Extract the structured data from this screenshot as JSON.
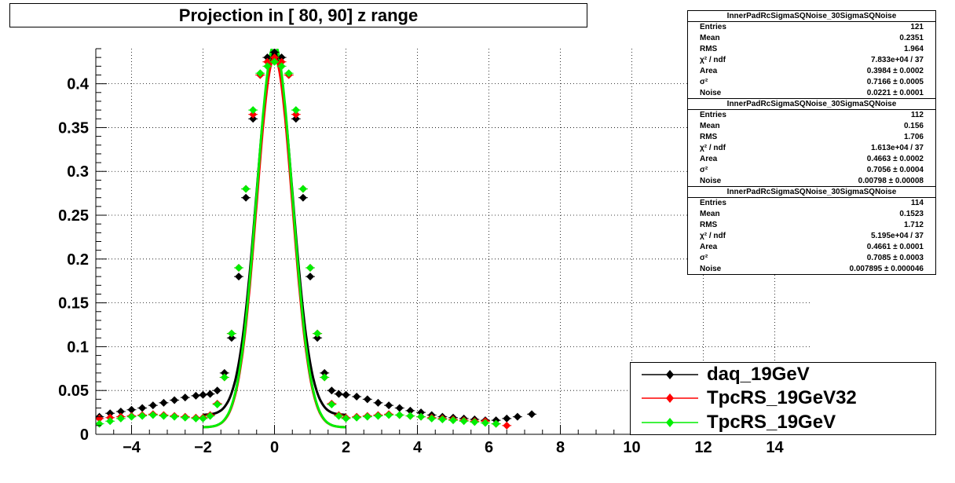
{
  "chart_data": {
    "type": "scatter",
    "title": "Projection in [  80,  90] z range",
    "xlabel": "",
    "ylabel": "",
    "xlim": [
      -5,
      15
    ],
    "ylim": [
      0,
      0.44
    ],
    "x_ticks": [
      "−4",
      "−2",
      "0",
      "2",
      "4",
      "6",
      "8",
      "10",
      "12",
      "14"
    ],
    "x_tick_values": [
      -4,
      -2,
      0,
      2,
      4,
      6,
      8,
      10,
      12,
      14
    ],
    "y_ticks": [
      "0",
      "0.05",
      "0.1",
      "0.15",
      "0.2",
      "0.25",
      "0.3",
      "0.35",
      "0.4"
    ],
    "y_tick_values": [
      0,
      0.05,
      0.1,
      0.15,
      0.2,
      0.25,
      0.3,
      0.35,
      0.4
    ],
    "grid": true,
    "legend_position": "bottom-right",
    "series": [
      {
        "name": "daq_19GeV",
        "color": "#000000",
        "marker": "diamond",
        "x": [
          -4.9,
          -4.6,
          -4.3,
          -4.0,
          -3.7,
          -3.4,
          -3.1,
          -2.8,
          -2.5,
          -2.2,
          -2.0,
          -1.8,
          -1.6,
          -1.4,
          -1.2,
          -1.0,
          -0.8,
          -0.6,
          -0.4,
          -0.2,
          0.0,
          0.2,
          0.4,
          0.6,
          0.8,
          1.0,
          1.2,
          1.4,
          1.6,
          1.8,
          2.0,
          2.3,
          2.6,
          2.9,
          3.2,
          3.5,
          3.8,
          4.1,
          4.4,
          4.7,
          5.0,
          5.3,
          5.6,
          5.9,
          6.2,
          6.5,
          6.8,
          7.2
        ],
        "y": [
          0.02,
          0.024,
          0.026,
          0.028,
          0.03,
          0.033,
          0.036,
          0.039,
          0.042,
          0.044,
          0.045,
          0.046,
          0.05,
          0.07,
          0.11,
          0.18,
          0.27,
          0.36,
          0.41,
          0.43,
          0.436,
          0.43,
          0.41,
          0.36,
          0.27,
          0.18,
          0.11,
          0.07,
          0.05,
          0.046,
          0.045,
          0.043,
          0.04,
          0.036,
          0.033,
          0.03,
          0.027,
          0.025,
          0.022,
          0.02,
          0.019,
          0.018,
          0.017,
          0.016,
          0.016,
          0.018,
          0.02,
          0.023
        ],
        "fit_amplitude": 0.436,
        "fit_sigma": 0.7166,
        "fit_noise": 0.0221
      },
      {
        "name": "TpcRS_19GeV32",
        "color": "#ff0000",
        "marker": "diamond",
        "x": [
          -4.9,
          -4.6,
          -4.3,
          -4.0,
          -3.7,
          -3.4,
          -3.1,
          -2.8,
          -2.5,
          -2.2,
          -2.0,
          -1.8,
          -1.6,
          -1.4,
          -1.2,
          -1.0,
          -0.8,
          -0.6,
          -0.4,
          -0.2,
          0.0,
          0.2,
          0.4,
          0.6,
          0.8,
          1.0,
          1.2,
          1.4,
          1.6,
          1.8,
          2.0,
          2.3,
          2.6,
          2.9,
          3.2,
          3.5,
          3.8,
          4.1,
          4.4,
          4.7,
          5.0,
          5.3,
          5.6,
          5.9,
          6.2,
          6.5
        ],
        "y": [
          0.018,
          0.019,
          0.02,
          0.021,
          0.022,
          0.023,
          0.022,
          0.021,
          0.02,
          0.019,
          0.019,
          0.022,
          0.035,
          0.065,
          0.115,
          0.19,
          0.28,
          0.365,
          0.41,
          0.425,
          0.43,
          0.425,
          0.41,
          0.365,
          0.28,
          0.19,
          0.115,
          0.065,
          0.035,
          0.022,
          0.019,
          0.02,
          0.021,
          0.022,
          0.023,
          0.022,
          0.021,
          0.02,
          0.019,
          0.018,
          0.017,
          0.016,
          0.015,
          0.015,
          0.012,
          0.01
        ],
        "fit_amplitude": 0.43,
        "fit_sigma": 0.7056,
        "fit_noise": 0.00798
      },
      {
        "name": "TpcRS_19GeV",
        "color": "#00ee00",
        "marker": "diamond",
        "x": [
          -4.9,
          -4.6,
          -4.3,
          -4.0,
          -3.7,
          -3.4,
          -3.1,
          -2.8,
          -2.5,
          -2.2,
          -2.0,
          -1.8,
          -1.6,
          -1.4,
          -1.2,
          -1.0,
          -0.8,
          -0.6,
          -0.4,
          -0.2,
          0.0,
          0.2,
          0.4,
          0.6,
          0.8,
          1.0,
          1.2,
          1.4,
          1.6,
          1.8,
          2.0,
          2.3,
          2.6,
          2.9,
          3.2,
          3.5,
          3.8,
          4.1,
          4.4,
          4.7,
          5.0,
          5.3,
          5.6,
          5.9,
          6.2
        ],
        "y": [
          0.012,
          0.015,
          0.018,
          0.02,
          0.021,
          0.022,
          0.021,
          0.02,
          0.019,
          0.018,
          0.018,
          0.021,
          0.034,
          0.065,
          0.115,
          0.19,
          0.28,
          0.37,
          0.412,
          0.42,
          0.425,
          0.42,
          0.412,
          0.37,
          0.28,
          0.19,
          0.115,
          0.065,
          0.034,
          0.021,
          0.018,
          0.019,
          0.02,
          0.021,
          0.022,
          0.022,
          0.021,
          0.02,
          0.018,
          0.017,
          0.016,
          0.015,
          0.014,
          0.013,
          0.012
        ],
        "fit_amplitude": 0.445,
        "fit_sigma": 0.7085,
        "fit_noise": 0.007895
      }
    ]
  },
  "stats_boxes": [
    {
      "header": "InnerPadRcSigmaSQNoise_30SigmaSQNoise",
      "rows": [
        {
          "k": "Entries",
          "v": "121"
        },
        {
          "k": "Mean",
          "v": "0.2351"
        },
        {
          "k": "RMS",
          "v": "1.964"
        },
        {
          "k": "χ² / ndf",
          "v": "7.833e+04 / 37"
        },
        {
          "k": "Area",
          "v": "0.3984 ± 0.0002"
        },
        {
          "k": "σ²",
          "v": "0.7166 ± 0.0005"
        },
        {
          "k": "Noise",
          "v": "0.0221 ± 0.0001"
        }
      ]
    },
    {
      "header": "InnerPadRcSigmaSQNoise_30SigmaSQNoise",
      "rows": [
        {
          "k": "Entries",
          "v": "112"
        },
        {
          "k": "Mean",
          "v": "0.156"
        },
        {
          "k": "RMS",
          "v": "1.706"
        },
        {
          "k": "χ² / ndf",
          "v": "1.613e+04 / 37"
        },
        {
          "k": "Area",
          "v": "0.4663 ± 0.0002"
        },
        {
          "k": "σ²",
          "v": "0.7056 ± 0.0004"
        },
        {
          "k": "Noise",
          "v": "0.00798 ± 0.00008"
        }
      ]
    },
    {
      "header": "InnerPadRcSigmaSQNoise_30SigmaSQNoise",
      "rows": [
        {
          "k": "Entries",
          "v": "114"
        },
        {
          "k": "Mean",
          "v": "0.1523"
        },
        {
          "k": "RMS",
          "v": "1.712"
        },
        {
          "k": "χ² / ndf",
          "v": "5.195e+04 / 37"
        },
        {
          "k": "Area",
          "v": "0.4661 ± 0.0001"
        },
        {
          "k": "σ²",
          "v": "0.7085 ± 0.0003"
        },
        {
          "k": "Noise",
          "v": "0.007895 ± 0.000046"
        }
      ]
    }
  ]
}
